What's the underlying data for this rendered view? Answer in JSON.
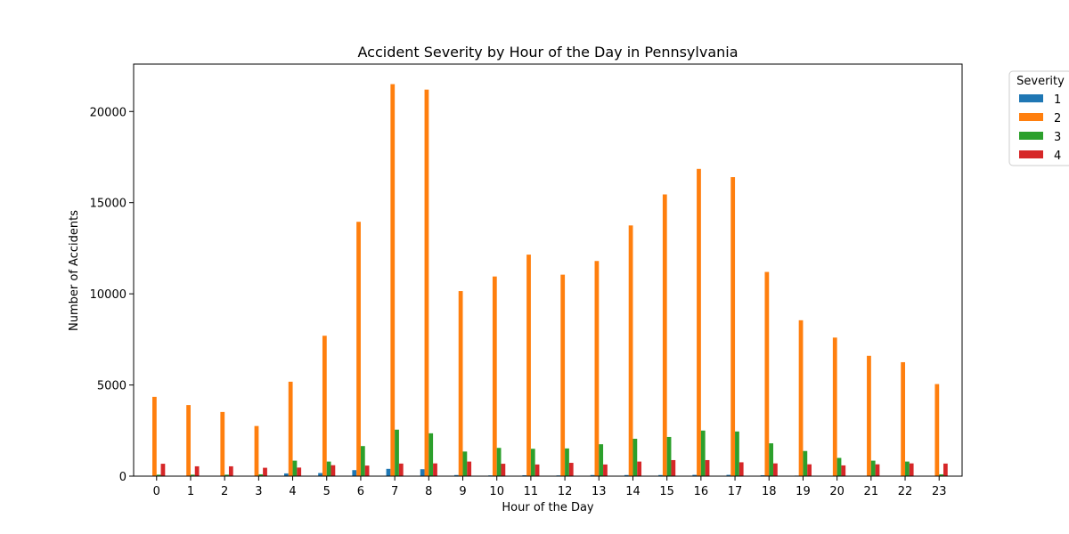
{
  "chart_data": {
    "type": "bar",
    "title": "Accident Severity by Hour of the Day in Pennsylvania",
    "xlabel": "Hour of the Day",
    "ylabel": "Number of Accidents",
    "categories": [
      "0",
      "1",
      "2",
      "3",
      "4",
      "5",
      "6",
      "7",
      "8",
      "9",
      "10",
      "11",
      "12",
      "13",
      "14",
      "15",
      "16",
      "17",
      "18",
      "19",
      "20",
      "21",
      "22",
      "23"
    ],
    "ylim": [
      0,
      22600
    ],
    "yticks": [
      0,
      5000,
      10000,
      15000,
      20000
    ],
    "grid": false,
    "legend": {
      "title": "Severity",
      "placement": "outside-top-right"
    },
    "series": [
      {
        "name": "1",
        "color": "#1f77b4",
        "values": [
          10,
          10,
          10,
          20,
          150,
          170,
          330,
          400,
          380,
          60,
          40,
          50,
          40,
          60,
          60,
          60,
          70,
          70,
          50,
          30,
          20,
          20,
          20,
          15
        ]
      },
      {
        "name": "2",
        "color": "#ff7f0e",
        "values": [
          4350,
          3900,
          3520,
          2750,
          5180,
          7700,
          13950,
          21500,
          21200,
          10150,
          10950,
          12150,
          11050,
          11800,
          13750,
          15450,
          16850,
          16400,
          11200,
          8550,
          7600,
          6600,
          6250,
          5050
        ]
      },
      {
        "name": "3",
        "color": "#2ca02c",
        "values": [
          80,
          80,
          80,
          100,
          850,
          800,
          1650,
          2550,
          2350,
          1350,
          1550,
          1500,
          1520,
          1750,
          2050,
          2150,
          2500,
          2450,
          1800,
          1380,
          1000,
          850,
          800,
          100
        ]
      },
      {
        "name": "4",
        "color": "#d62728",
        "values": [
          680,
          540,
          540,
          460,
          470,
          600,
          580,
          690,
          700,
          800,
          680,
          640,
          730,
          640,
          800,
          880,
          880,
          760,
          700,
          650,
          590,
          650,
          700,
          690
        ]
      }
    ]
  }
}
